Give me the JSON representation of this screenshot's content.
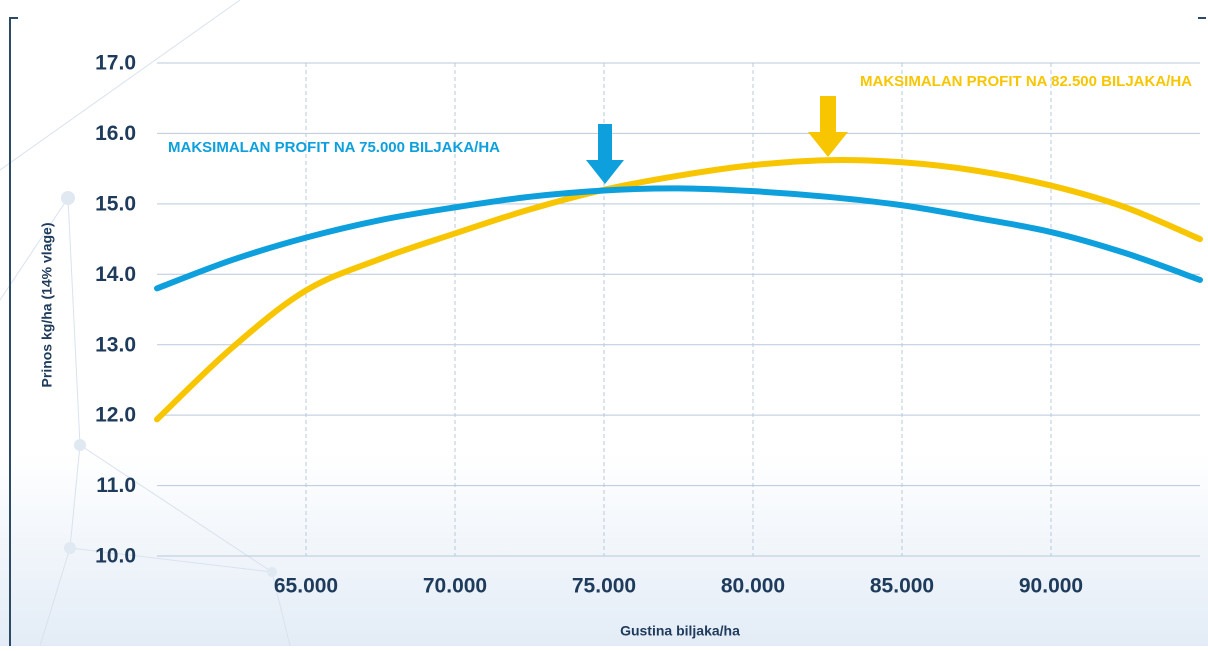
{
  "chart_data": {
    "type": "line",
    "x_label": "Gustina biljaka/ha",
    "y_label": "Prinos kg/ha (14% vlage)",
    "annotations": [
      {
        "text": "MAKSIMALAN PROFIT NA 75.000 BILJAKA/HA",
        "color": "#0ea0dc"
      },
      {
        "text": "MAKSIMALAN PROFIT NA 82.500 BILJAKA/HA",
        "color": "#f7c600"
      }
    ],
    "x": [
      60000,
      62500,
      65000,
      67500,
      70000,
      72500,
      75000,
      77500,
      80000,
      82500,
      85000,
      87500,
      90000,
      92500,
      95000
    ],
    "series": [
      {
        "name": "75.000",
        "color": "#0ea0dc",
        "values": [
          13.8,
          14.2,
          14.52,
          14.77,
          14.95,
          15.1,
          15.19,
          15.22,
          15.18,
          15.1,
          14.98,
          14.8,
          14.6,
          14.3,
          13.92
        ]
      },
      {
        "name": "82.500",
        "color": "#f7c600",
        "values": [
          11.94,
          12.95,
          13.77,
          14.22,
          14.58,
          14.92,
          15.2,
          15.4,
          15.55,
          15.62,
          15.59,
          15.47,
          15.26,
          14.95,
          14.5
        ]
      }
    ],
    "xlim": [
      60000,
      95000
    ],
    "xticks": [
      {
        "value": 65000,
        "label": "65.000"
      },
      {
        "value": 70000,
        "label": "70.000"
      },
      {
        "value": 75000,
        "label": "75.000"
      },
      {
        "value": 80000,
        "label": "80.000"
      },
      {
        "value": 85000,
        "label": "85.000"
      },
      {
        "value": 90000,
        "label": "90.000"
      }
    ],
    "ylim": [
      10,
      17
    ],
    "yticks": [
      {
        "value": 10,
        "label": "10.0"
      },
      {
        "value": 11,
        "label": "11.0"
      },
      {
        "value": 12,
        "label": "12.0"
      },
      {
        "value": 13,
        "label": "13.0"
      },
      {
        "value": 14,
        "label": "14.0"
      },
      {
        "value": 15,
        "label": "15.0"
      },
      {
        "value": 16,
        "label": "16.0"
      },
      {
        "value": 17,
        "label": "17.0"
      }
    ],
    "grid": true
  }
}
